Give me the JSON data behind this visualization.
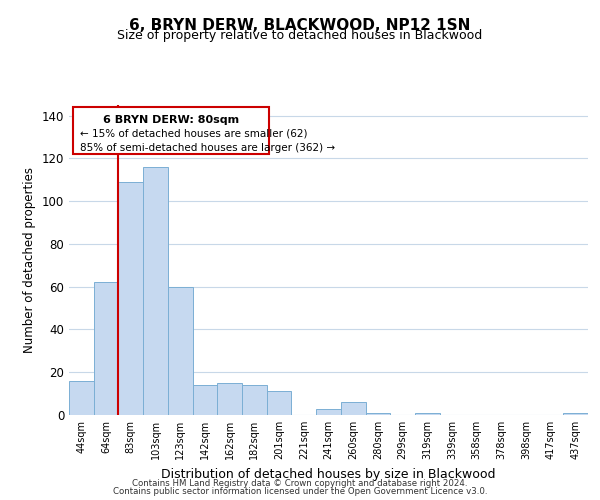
{
  "title": "6, BRYN DERW, BLACKWOOD, NP12 1SN",
  "subtitle": "Size of property relative to detached houses in Blackwood",
  "xlabel": "Distribution of detached houses by size in Blackwood",
  "ylabel": "Number of detached properties",
  "bar_labels": [
    "44sqm",
    "64sqm",
    "83sqm",
    "103sqm",
    "123sqm",
    "142sqm",
    "162sqm",
    "182sqm",
    "201sqm",
    "221sqm",
    "241sqm",
    "260sqm",
    "280sqm",
    "299sqm",
    "319sqm",
    "339sqm",
    "358sqm",
    "378sqm",
    "398sqm",
    "417sqm",
    "437sqm"
  ],
  "bar_values": [
    16,
    62,
    109,
    116,
    60,
    14,
    15,
    14,
    11,
    0,
    3,
    6,
    1,
    0,
    1,
    0,
    0,
    0,
    0,
    0,
    1
  ],
  "bar_color": "#c6d9f0",
  "bar_edge_color": "#7bafd4",
  "vline_x": 1.5,
  "vline_color": "#cc0000",
  "annotation_title": "6 BRYN DERW: 80sqm",
  "annotation_line1": "← 15% of detached houses are smaller (62)",
  "annotation_line2": "85% of semi-detached houses are larger (362) →",
  "annotation_box_color": "#ffffff",
  "annotation_box_edge": "#cc0000",
  "ylim": [
    0,
    145
  ],
  "yticks": [
    0,
    20,
    40,
    60,
    80,
    100,
    120,
    140
  ],
  "footer_line1": "Contains HM Land Registry data © Crown copyright and database right 2024.",
  "footer_line2": "Contains public sector information licensed under the Open Government Licence v3.0.",
  "background_color": "#ffffff",
  "grid_color": "#c8d8e8"
}
